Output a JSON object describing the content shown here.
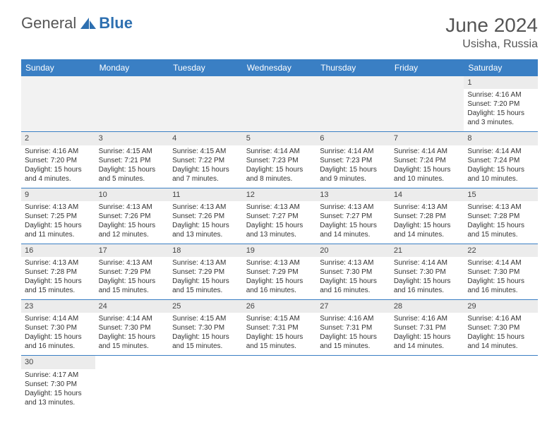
{
  "logo": {
    "general": "General",
    "blue": "Blue"
  },
  "title": "June 2024",
  "location": "Usisha, Russia",
  "colors": {
    "header_bg": "#3a7fc4",
    "header_text": "#ffffff",
    "daynum_bg": "#ececec",
    "border": "#3a7fc4",
    "logo_blue": "#2d6fb0"
  },
  "weekdays": [
    "Sunday",
    "Monday",
    "Tuesday",
    "Wednesday",
    "Thursday",
    "Friday",
    "Saturday"
  ],
  "weeks": [
    [
      null,
      null,
      null,
      null,
      null,
      null,
      {
        "d": "1",
        "sr": "Sunrise: 4:16 AM",
        "ss": "Sunset: 7:20 PM",
        "dl1": "Daylight: 15 hours",
        "dl2": "and 3 minutes."
      }
    ],
    [
      {
        "d": "2",
        "sr": "Sunrise: 4:16 AM",
        "ss": "Sunset: 7:20 PM",
        "dl1": "Daylight: 15 hours",
        "dl2": "and 4 minutes."
      },
      {
        "d": "3",
        "sr": "Sunrise: 4:15 AM",
        "ss": "Sunset: 7:21 PM",
        "dl1": "Daylight: 15 hours",
        "dl2": "and 5 minutes."
      },
      {
        "d": "4",
        "sr": "Sunrise: 4:15 AM",
        "ss": "Sunset: 7:22 PM",
        "dl1": "Daylight: 15 hours",
        "dl2": "and 7 minutes."
      },
      {
        "d": "5",
        "sr": "Sunrise: 4:14 AM",
        "ss": "Sunset: 7:23 PM",
        "dl1": "Daylight: 15 hours",
        "dl2": "and 8 minutes."
      },
      {
        "d": "6",
        "sr": "Sunrise: 4:14 AM",
        "ss": "Sunset: 7:23 PM",
        "dl1": "Daylight: 15 hours",
        "dl2": "and 9 minutes."
      },
      {
        "d": "7",
        "sr": "Sunrise: 4:14 AM",
        "ss": "Sunset: 7:24 PM",
        "dl1": "Daylight: 15 hours",
        "dl2": "and 10 minutes."
      },
      {
        "d": "8",
        "sr": "Sunrise: 4:14 AM",
        "ss": "Sunset: 7:24 PM",
        "dl1": "Daylight: 15 hours",
        "dl2": "and 10 minutes."
      }
    ],
    [
      {
        "d": "9",
        "sr": "Sunrise: 4:13 AM",
        "ss": "Sunset: 7:25 PM",
        "dl1": "Daylight: 15 hours",
        "dl2": "and 11 minutes."
      },
      {
        "d": "10",
        "sr": "Sunrise: 4:13 AM",
        "ss": "Sunset: 7:26 PM",
        "dl1": "Daylight: 15 hours",
        "dl2": "and 12 minutes."
      },
      {
        "d": "11",
        "sr": "Sunrise: 4:13 AM",
        "ss": "Sunset: 7:26 PM",
        "dl1": "Daylight: 15 hours",
        "dl2": "and 13 minutes."
      },
      {
        "d": "12",
        "sr": "Sunrise: 4:13 AM",
        "ss": "Sunset: 7:27 PM",
        "dl1": "Daylight: 15 hours",
        "dl2": "and 13 minutes."
      },
      {
        "d": "13",
        "sr": "Sunrise: 4:13 AM",
        "ss": "Sunset: 7:27 PM",
        "dl1": "Daylight: 15 hours",
        "dl2": "and 14 minutes."
      },
      {
        "d": "14",
        "sr": "Sunrise: 4:13 AM",
        "ss": "Sunset: 7:28 PM",
        "dl1": "Daylight: 15 hours",
        "dl2": "and 14 minutes."
      },
      {
        "d": "15",
        "sr": "Sunrise: 4:13 AM",
        "ss": "Sunset: 7:28 PM",
        "dl1": "Daylight: 15 hours",
        "dl2": "and 15 minutes."
      }
    ],
    [
      {
        "d": "16",
        "sr": "Sunrise: 4:13 AM",
        "ss": "Sunset: 7:28 PM",
        "dl1": "Daylight: 15 hours",
        "dl2": "and 15 minutes."
      },
      {
        "d": "17",
        "sr": "Sunrise: 4:13 AM",
        "ss": "Sunset: 7:29 PM",
        "dl1": "Daylight: 15 hours",
        "dl2": "and 15 minutes."
      },
      {
        "d": "18",
        "sr": "Sunrise: 4:13 AM",
        "ss": "Sunset: 7:29 PM",
        "dl1": "Daylight: 15 hours",
        "dl2": "and 15 minutes."
      },
      {
        "d": "19",
        "sr": "Sunrise: 4:13 AM",
        "ss": "Sunset: 7:29 PM",
        "dl1": "Daylight: 15 hours",
        "dl2": "and 16 minutes."
      },
      {
        "d": "20",
        "sr": "Sunrise: 4:13 AM",
        "ss": "Sunset: 7:30 PM",
        "dl1": "Daylight: 15 hours",
        "dl2": "and 16 minutes."
      },
      {
        "d": "21",
        "sr": "Sunrise: 4:14 AM",
        "ss": "Sunset: 7:30 PM",
        "dl1": "Daylight: 15 hours",
        "dl2": "and 16 minutes."
      },
      {
        "d": "22",
        "sr": "Sunrise: 4:14 AM",
        "ss": "Sunset: 7:30 PM",
        "dl1": "Daylight: 15 hours",
        "dl2": "and 16 minutes."
      }
    ],
    [
      {
        "d": "23",
        "sr": "Sunrise: 4:14 AM",
        "ss": "Sunset: 7:30 PM",
        "dl1": "Daylight: 15 hours",
        "dl2": "and 16 minutes."
      },
      {
        "d": "24",
        "sr": "Sunrise: 4:14 AM",
        "ss": "Sunset: 7:30 PM",
        "dl1": "Daylight: 15 hours",
        "dl2": "and 15 minutes."
      },
      {
        "d": "25",
        "sr": "Sunrise: 4:15 AM",
        "ss": "Sunset: 7:30 PM",
        "dl1": "Daylight: 15 hours",
        "dl2": "and 15 minutes."
      },
      {
        "d": "26",
        "sr": "Sunrise: 4:15 AM",
        "ss": "Sunset: 7:31 PM",
        "dl1": "Daylight: 15 hours",
        "dl2": "and 15 minutes."
      },
      {
        "d": "27",
        "sr": "Sunrise: 4:16 AM",
        "ss": "Sunset: 7:31 PM",
        "dl1": "Daylight: 15 hours",
        "dl2": "and 15 minutes."
      },
      {
        "d": "28",
        "sr": "Sunrise: 4:16 AM",
        "ss": "Sunset: 7:31 PM",
        "dl1": "Daylight: 15 hours",
        "dl2": "and 14 minutes."
      },
      {
        "d": "29",
        "sr": "Sunrise: 4:16 AM",
        "ss": "Sunset: 7:30 PM",
        "dl1": "Daylight: 15 hours",
        "dl2": "and 14 minutes."
      }
    ],
    [
      {
        "d": "30",
        "sr": "Sunrise: 4:17 AM",
        "ss": "Sunset: 7:30 PM",
        "dl1": "Daylight: 15 hours",
        "dl2": "and 13 minutes."
      },
      null,
      null,
      null,
      null,
      null,
      null
    ]
  ]
}
